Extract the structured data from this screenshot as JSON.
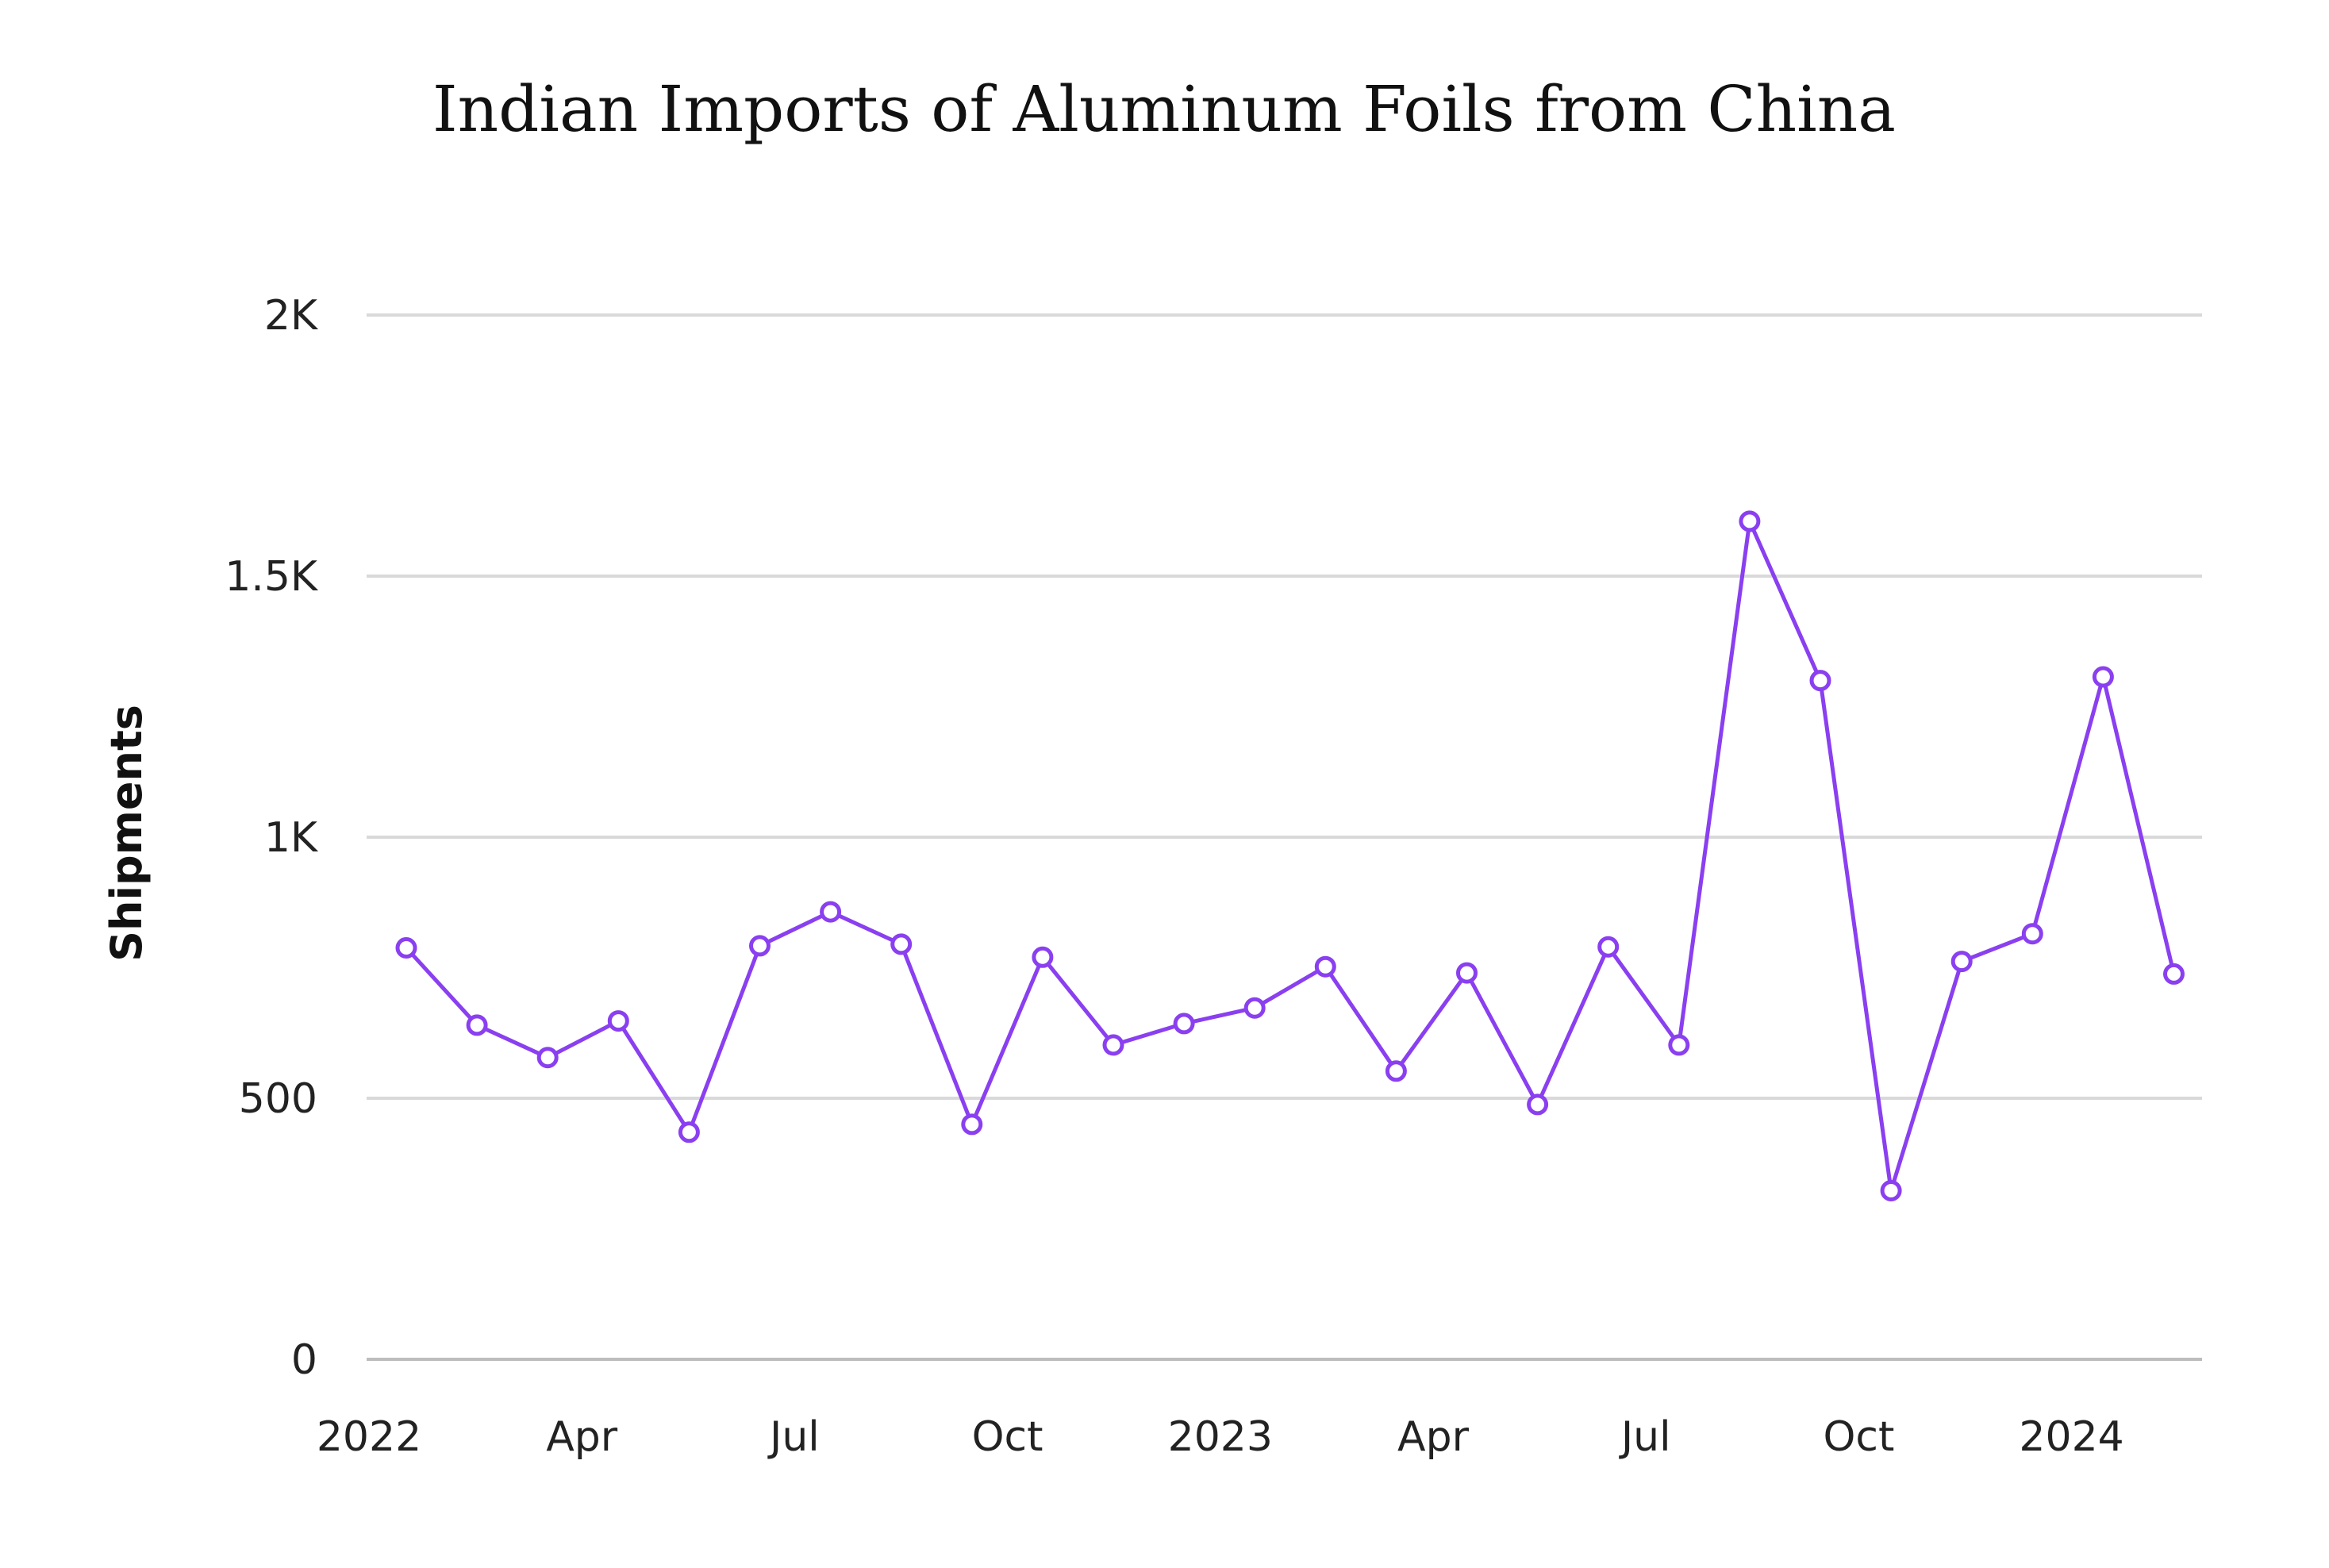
{
  "chart_data": {
    "type": "line",
    "title": "Indian Imports of Aluminum Foils from China",
    "xlabel": "",
    "ylabel": "Shipments",
    "x_ticks": [
      "2022",
      "Apr",
      "Jul",
      "Oct",
      "2023",
      "Apr",
      "Jul",
      "Oct",
      "2024"
    ],
    "y_ticks": [
      "0",
      "500",
      "1K",
      "1.5K",
      "2K"
    ],
    "y_tick_values": [
      0,
      500,
      1000,
      1500,
      2000
    ],
    "ylim": [
      0,
      2000
    ],
    "xlim": [
      "2022-01",
      "2024-03"
    ],
    "grid": true,
    "x": [
      "2022-01",
      "2022-02",
      "2022-03",
      "2022-04",
      "2022-05",
      "2022-06",
      "2022-07",
      "2022-08",
      "2022-09",
      "2022-10",
      "2022-11",
      "2022-12",
      "2023-01",
      "2023-02",
      "2023-03",
      "2023-04",
      "2023-05",
      "2023-06",
      "2023-07",
      "2023-08",
      "2023-09",
      "2023-10",
      "2023-11",
      "2023-12",
      "2024-01",
      "2024-02"
    ],
    "series": [
      {
        "values": [
          788,
          640,
          578,
          648,
          435,
          792,
          857,
          795,
          450,
          770,
          602,
          643,
          673,
          752,
          552,
          740,
          488,
          790,
          602,
          1605,
          1300,
          323,
          762,
          815,
          1307,
          738
        ]
      }
    ],
    "colors": {
      "line": "#8a3ff0"
    }
  }
}
